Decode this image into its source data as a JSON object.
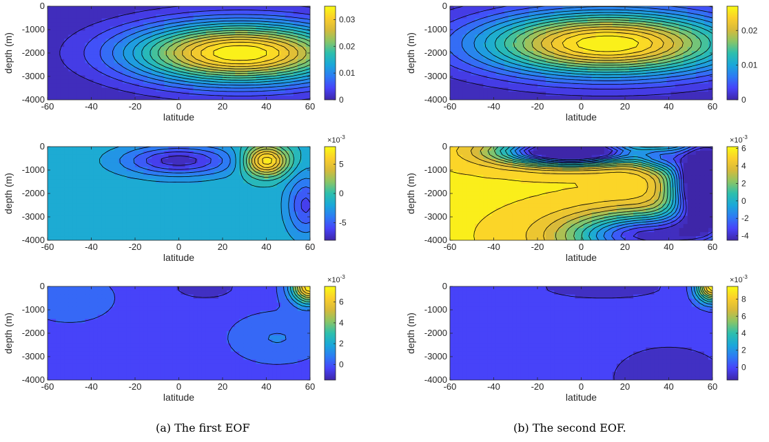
{
  "captions": {
    "a": "(a) The first EOF",
    "b": "(b) The second EOF."
  },
  "colors": {
    "colormap": [
      "#3E26A8",
      "#4743F9",
      "#2D7BF4",
      "#1AA8D9",
      "#2DBFAD",
      "#8BC566",
      "#D8BA3A",
      "#FBCF2B",
      "#F9FB14"
    ],
    "contour_line": "#000000",
    "gap_line": "#ffffff"
  },
  "chart_data": [
    {
      "id": "a1",
      "type": "contour",
      "xlabel": "latitude",
      "ylabel": "depth (m)",
      "xlim": [
        -60,
        60
      ],
      "ylim": [
        -4000,
        0
      ],
      "xticks": [
        "-60",
        "-40",
        "-20",
        "0",
        "20",
        "40",
        "60"
      ],
      "yticks": [
        "0",
        "-1000",
        "-2000",
        "-3000",
        "-4000"
      ],
      "colorbar": {
        "ticks": [
          0,
          0.01,
          0.02,
          0.03
        ],
        "tick_labels": [
          "0",
          "0.01",
          "0.02",
          "0.03"
        ],
        "exponent": "",
        "range": [
          0,
          0.035
        ]
      },
      "field": {
        "background": 0,
        "features": [
          {
            "lat": 28,
            "depth": -2000,
            "value": 0.035,
            "sx": 35,
            "sy": 900
          }
        ],
        "lobes": []
      },
      "levels": 16
    },
    {
      "id": "a2",
      "type": "contour",
      "xlabel": "latitude",
      "ylabel": "depth (m)",
      "xlim": [
        -60,
        60
      ],
      "ylim": [
        -4000,
        0
      ],
      "xticks": [
        "-60",
        "-40",
        "-20",
        "0",
        "20",
        "40",
        "60"
      ],
      "yticks": [
        "0",
        "-1000",
        "-2000",
        "-3000",
        "-4000"
      ],
      "colorbar": {
        "ticks": [
          5,
          0,
          -5
        ],
        "tick_labels": [
          "5",
          "0",
          "-5"
        ],
        "exponent": "×10",
        "exponent_power": "-3",
        "range": [
          -8,
          8
        ]
      },
      "field": {
        "background": -1.5,
        "features": [
          {
            "lat": 0,
            "depth": -600,
            "value": -7.5,
            "sx": 18,
            "sy": 450
          },
          {
            "lat": 40,
            "depth": -600,
            "value": 8,
            "sx": 7,
            "sy": 450
          },
          {
            "lat": 58,
            "depth": -2500,
            "value": -6,
            "sx": 6,
            "sy": 900
          }
        ]
      },
      "levels": 14
    },
    {
      "id": "a3",
      "type": "contour",
      "xlabel": "latitude",
      "ylabel": "depth (m)",
      "xlim": [
        -60,
        60
      ],
      "ylim": [
        -4000,
        0
      ],
      "xticks": [
        "-60",
        "-40",
        "-20",
        "0",
        "20",
        "40",
        "60"
      ],
      "yticks": [
        "0",
        "-1000",
        "-2000",
        "-3000",
        "-4000"
      ],
      "colorbar": {
        "ticks": [
          6,
          4,
          2,
          0
        ],
        "tick_labels": [
          "6",
          "4",
          "2",
          "0"
        ],
        "exponent": "×10",
        "exponent_power": "-3",
        "range": [
          -1.5,
          7.5
        ]
      },
      "field": {
        "background": -0.3,
        "features": [
          {
            "lat": 12,
            "depth": -50,
            "value": -1.5,
            "sx": 9,
            "sy": 300
          },
          {
            "lat": 60,
            "depth": 0,
            "value": 7.5,
            "sx": 6,
            "sy": 500
          },
          {
            "lat": -50,
            "depth": -500,
            "value": 0.6,
            "sx": 14,
            "sy": 700
          },
          {
            "lat": 45,
            "depth": -2200,
            "value": 0.8,
            "sx": 14,
            "sy": 700
          }
        ]
      },
      "levels": 12
    },
    {
      "id": "b1",
      "type": "contour",
      "xlabel": "latitude",
      "ylabel": "depth (m)",
      "xlim": [
        -60,
        60
      ],
      "ylim": [
        -4000,
        0
      ],
      "xticks": [
        "-60",
        "-40",
        "-20",
        "0",
        "20",
        "40",
        "60"
      ],
      "yticks": [
        "0",
        "-1000",
        "-2000",
        "-3000",
        "-4000"
      ],
      "colorbar": {
        "ticks": [
          0,
          0.01,
          0.02
        ],
        "tick_labels": [
          "0",
          "0.01",
          "0.02"
        ],
        "exponent": "",
        "range": [
          0,
          0.027
        ]
      },
      "field": {
        "background": 0,
        "features": [
          {
            "lat": 12,
            "depth": -1600,
            "value": 0.027,
            "sx": 40,
            "sy": 950
          }
        ]
      },
      "levels": 16
    },
    {
      "id": "b2",
      "type": "contour",
      "xlabel": "latitude",
      "ylabel": "depth (m)",
      "xlim": [
        -60,
        60
      ],
      "ylim": [
        -4000,
        0
      ],
      "xticks": [
        "-60",
        "-40",
        "-20",
        "0",
        "20",
        "40",
        "60"
      ],
      "yticks": [
        "0",
        "-1000",
        "-2000",
        "-3000",
        "-4000"
      ],
      "colorbar": {
        "ticks": [
          6,
          4,
          2,
          0,
          -2,
          -4
        ],
        "tick_labels": [
          "6",
          "4",
          "2",
          "0",
          "-2",
          "-4"
        ],
        "exponent": "×10",
        "exponent_power": "-3",
        "range": [
          -4.5,
          6.2
        ]
      },
      "field": {
        "background": 5.5,
        "features": [
          {
            "lat": -5,
            "depth": -200,
            "value": -8,
            "sx": 22,
            "sy": 400
          },
          {
            "lat": 36,
            "depth": -500,
            "value": 1.2,
            "sx": 8,
            "sy": 400
          },
          {
            "lat": 58,
            "depth": -1500,
            "value": -10,
            "sx": 11,
            "sy": 1400
          },
          {
            "lat": 30,
            "depth": -3800,
            "value": -4,
            "sx": 25,
            "sy": 700
          }
        ]
      },
      "levels": 14
    },
    {
      "id": "b3",
      "type": "contour",
      "xlabel": "latitude",
      "ylabel": "depth (m)",
      "xlim": [
        -60,
        60
      ],
      "ylim": [
        -4000,
        0
      ],
      "xticks": [
        "-60",
        "-40",
        "-20",
        "0",
        "20",
        "40",
        "60"
      ],
      "yticks": [
        "0",
        "-1000",
        "-2000",
        "-3000",
        "-4000"
      ],
      "colorbar": {
        "ticks": [
          8,
          6,
          4,
          2,
          0
        ],
        "tick_labels": [
          "8",
          "6",
          "4",
          "2",
          "0"
        ],
        "exponent": "×10",
        "exponent_power": "-3",
        "range": [
          -1.5,
          9.5
        ]
      },
      "field": {
        "background": -0.1,
        "features": [
          {
            "lat": 10,
            "depth": -50,
            "value": -1.5,
            "sx": 18,
            "sy": 300
          },
          {
            "lat": 60,
            "depth": 0,
            "value": 9.5,
            "sx": 5,
            "sy": 450
          },
          {
            "lat": 40,
            "depth": -3900,
            "value": -0.9,
            "sx": 25,
            "sy": 1300
          }
        ]
      },
      "levels": 12
    }
  ]
}
